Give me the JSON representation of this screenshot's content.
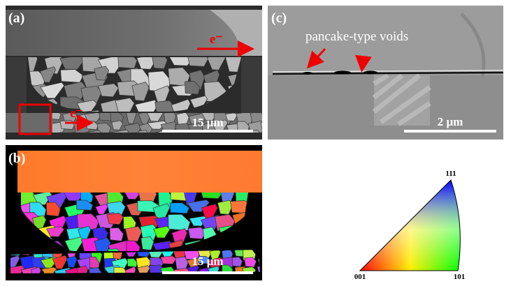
{
  "panels": {
    "a": {
      "label": "(a)",
      "beam_top": "e⁻",
      "beam_bottom": "e⁻",
      "scale_bar": "15 μm"
    },
    "c": {
      "label": "(c)",
      "annotation": "pancake-type voids",
      "scale_bar": "2 μm"
    },
    "b": {
      "label": "(b)",
      "scale_bar": "15 μm"
    }
  },
  "legend": {
    "top": "111",
    "bottom_left": "001",
    "bottom_right": "101"
  }
}
